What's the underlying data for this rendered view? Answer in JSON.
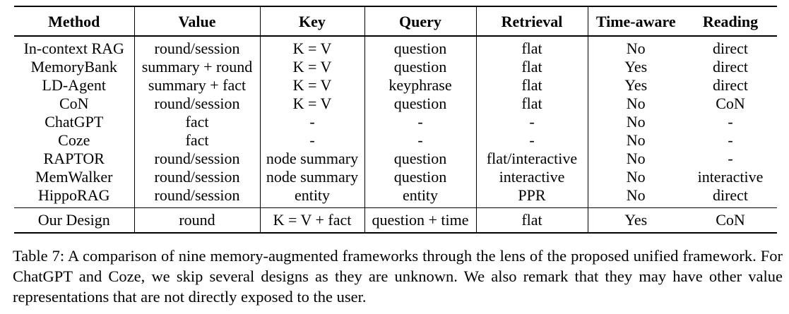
{
  "table": {
    "headers": [
      "Method",
      "Value",
      "Key",
      "Query",
      "Retrieval",
      "Time-aware",
      "Reading"
    ],
    "rows": [
      [
        "In-context RAG",
        "round/session",
        "K = V",
        "question",
        "flat",
        "No",
        "direct"
      ],
      [
        "MemoryBank",
        "summary + round",
        "K = V",
        "question",
        "flat",
        "Yes",
        "direct"
      ],
      [
        "LD-Agent",
        "summary + fact",
        "K = V",
        "keyphrase",
        "flat",
        "Yes",
        "direct"
      ],
      [
        "CoN",
        "round/session",
        "K = V",
        "question",
        "flat",
        "No",
        "CoN"
      ],
      [
        "ChatGPT",
        "fact",
        "-",
        "-",
        "-",
        "No",
        "-"
      ],
      [
        "Coze",
        "fact",
        "-",
        "-",
        "-",
        "No",
        "-"
      ],
      [
        "RAPTOR",
        "round/session",
        "node summary",
        "question",
        "flat/interactive",
        "No",
        "-"
      ],
      [
        "MemWalker",
        "round/session",
        "node summary",
        "question",
        "interactive",
        "No",
        "interactive"
      ],
      [
        "HippoRAG",
        "round/session",
        "entity",
        "entity",
        "PPR",
        "No",
        "direct"
      ]
    ],
    "footer_row": [
      "Our Design",
      "round",
      "K = V + fact",
      "question + time",
      "flat",
      "Yes",
      "CoN"
    ]
  },
  "caption": {
    "label": "Table 7:",
    "text": "A comparison of nine memory-augmented frameworks through the lens of the proposed unified framework. For ChatGPT and Coze, we skip several designs as they are unknown. We also remark that they may have other value representations that are not directly exposed to the user."
  }
}
